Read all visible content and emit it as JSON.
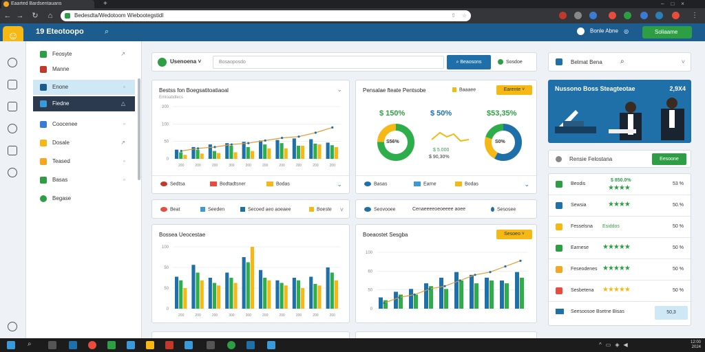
{
  "browser": {
    "tab_title": "Eaarted Bardsentauans",
    "url": "Bedesdta/Wedotoom Wiebootegstidl"
  },
  "header": {
    "brand": "Eteotoopo",
    "brand_prefix": "19",
    "user_text": "Bonle Abne",
    "action_label": "Soliaame"
  },
  "sidebar": {
    "items": [
      {
        "label": "Feosyte"
      },
      {
        "label": "Manne"
      },
      {
        "label": "Enone"
      },
      {
        "label": "Fiedne"
      },
      {
        "label": "Coocenee"
      },
      {
        "label": "Dosale"
      },
      {
        "label": "Teased"
      },
      {
        "label": "Basas"
      },
      {
        "label": "Begase"
      }
    ]
  },
  "filterbar": {
    "select_label": "Usenoena",
    "search_placeholder": "Bosaoposdo",
    "search_button": "Beaosons",
    "secondary": "Sosdoe"
  },
  "cards": {
    "sales": {
      "title": "Bestss fon Boegsatitoatiaoal",
      "subtitle": "Emtoabdtecs",
      "y_ticks": [
        "200",
        "100",
        "50",
        "0"
      ],
      "x_ticks": [
        "200",
        "200",
        "200",
        "300",
        "200",
        "200",
        "200",
        "200",
        "200",
        "200"
      ],
      "legend": [
        "Sedtsa",
        "Bodtadtsner",
        "Bodas"
      ]
    },
    "kpi": {
      "title": "Pensalae fteate Pentsobe",
      "pill": "Earente",
      "pill_label": "Baaaee",
      "values": [
        "$ 150%",
        "$ 50%",
        "$53,35%"
      ],
      "donut_labels": [
        "S56%",
        "S0%"
      ],
      "sub_values": [
        "$ 5.000",
        "$ 90,30%"
      ],
      "legend": [
        "Basas",
        "Earne",
        "Bodas"
      ]
    },
    "filter_row1": [
      "Beat",
      "Seeden",
      "Secoed aeo aoeaee",
      "Boeste"
    ],
    "filter_row2": [
      "Seovooee",
      "Cenaeeeeoeoeeee aoee",
      "Sesosee"
    ],
    "bottom_left": {
      "title": "Bossea Ueocestae",
      "y_ticks": [
        "100",
        "50",
        "50",
        "0"
      ],
      "x_ticks": [
        "200",
        "200",
        "200",
        "300",
        "300",
        "200",
        "200",
        "200",
        "200",
        "200"
      ]
    },
    "bottom_right": {
      "title": "Boeaostet Sesgba",
      "pill": "Sesoeo",
      "y_ticks": [
        "100",
        "60",
        "50",
        "0"
      ]
    }
  },
  "chart_data": [
    {
      "type": "bar",
      "title": "Bestss fon Boegsatitoatiaoal",
      "categories": [
        "200",
        "200",
        "200",
        "300",
        "200",
        "200",
        "200",
        "200",
        "200",
        "200"
      ],
      "series": [
        {
          "values": [
            35,
            45,
            55,
            60,
            65,
            70,
            72,
            78,
            75,
            62
          ]
        },
        {
          "values": [
            25,
            35,
            30,
            50,
            45,
            55,
            60,
            50,
            58,
            52
          ]
        },
        {
          "values": [
            15,
            20,
            22,
            25,
            30,
            40,
            40,
            50,
            55,
            45
          ]
        }
      ],
      "line": [
        30,
        40,
        45,
        55,
        60,
        70,
        80,
        85,
        100,
        120
      ],
      "ylim": [
        0,
        200
      ]
    },
    {
      "type": "bar",
      "title": "Bossea Ueocestae",
      "categories": [
        "200",
        "200",
        "200",
        "300",
        "300",
        "200",
        "200",
        "200",
        "200",
        "200"
      ],
      "series": [
        {
          "values": [
            62,
            85,
            60,
            70,
            100,
            75,
            55,
            60,
            62,
            80
          ]
        },
        {
          "values": [
            55,
            70,
            50,
            60,
            90,
            60,
            50,
            55,
            48,
            70
          ]
        },
        {
          "values": [
            40,
            55,
            45,
            50,
            120,
            55,
            45,
            40,
            45,
            55
          ]
        }
      ],
      "ylim": [
        0,
        120
      ]
    },
    {
      "type": "bar",
      "title": "Boeaostet Sesgba",
      "series": [
        {
          "values": [
            20,
            30,
            35,
            45,
            55,
            65,
            60,
            55,
            50,
            65
          ]
        },
        {
          "values": [
            15,
            25,
            25,
            40,
            35,
            50,
            45,
            50,
            45,
            55
          ]
        }
      ],
      "line": [
        10,
        20,
        25,
        35,
        40,
        50,
        60,
        65,
        75,
        85
      ],
      "ylim": [
        0,
        100
      ]
    }
  ],
  "right": {
    "search_label": "Belmat Bena",
    "hero_title": "Nussono Boss Steagteotae",
    "hero_badge": "2,9X4",
    "promo_label": "Rensie Felostana",
    "promo_button": "Eesoone",
    "rows": [
      {
        "name": "Beodis",
        "value": "$ 850.0%",
        "pct": "53 %"
      },
      {
        "name": "Sewsia",
        "value": "",
        "pct": "50.%"
      },
      {
        "name": "Fesselsna",
        "value": "Esiddos",
        "pct": "50 %"
      },
      {
        "name": "Earnese",
        "value": "",
        "pct": "50 %"
      },
      {
        "name": "Feseodenes",
        "value": "",
        "pct": "50 %"
      },
      {
        "name": "Sesbetena",
        "value": "",
        "pct": "50 %"
      },
      {
        "name": "Seesoosoe Bsetne Bisas",
        "value": "",
        "pct": "50,3"
      }
    ]
  }
}
